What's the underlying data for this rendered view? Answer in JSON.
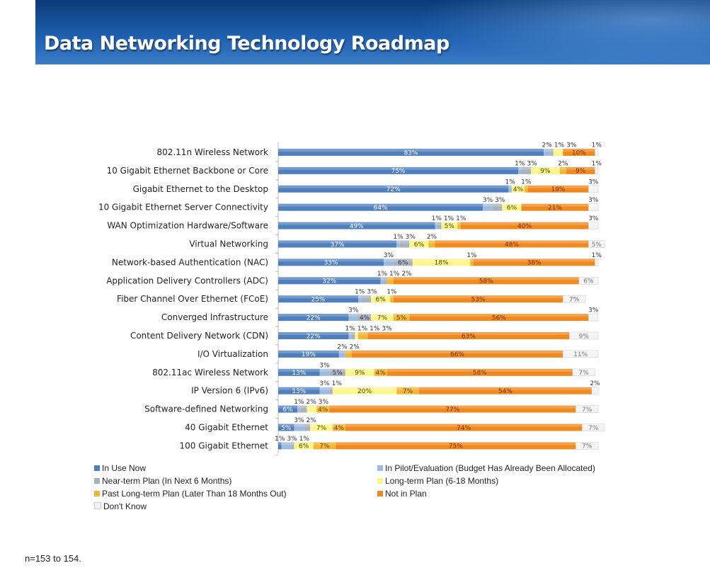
{
  "header": {
    "title": "Data Networking Technology Roadmap"
  },
  "chart_data": {
    "type": "bar",
    "orientation": "horizontal",
    "stacked": true,
    "percent": true,
    "xlim": [
      0,
      100
    ],
    "grid": false,
    "legend_position": "bottom",
    "categories": [
      "802.11n Wireless Network",
      "10 Gigabit Ethernet Backbone or Core",
      "Gigabit Ethernet to the Desktop",
      "10 Gigabit Ethernet Server Connectivity",
      "WAN Optimization Hardware/Software",
      "Virtual Networking",
      "Network-based Authentication (NAC)",
      "Application Delivery Controllers (ADC)",
      "Fiber Channel Over Ethernet (FCoE)",
      "Converged Infrastructure",
      "Content Delivery Network (CDN)",
      "I/O Virtualization",
      "802.11ac Wireless Network",
      "IP Version 6 (IPv6)",
      "Software-defined Networking",
      "40 Gigabit Ethernet",
      "100 Gigabit Ethernet"
    ],
    "series": [
      {
        "name": "In Use Now",
        "color": "#4f7fbd",
        "values": [
          83,
          75,
          72,
          64,
          49,
          37,
          33,
          32,
          25,
          22,
          22,
          19,
          13,
          13,
          6,
          5,
          1
        ]
      },
      {
        "name": "In Pilot/Evaluation (Budget Has Already Been Allocated)",
        "color": "#9dbbe0",
        "values": [
          2,
          1,
          1,
          3,
          1,
          1,
          3,
          1,
          1,
          3,
          1,
          2,
          3,
          3,
          1,
          3,
          3
        ]
      },
      {
        "name": "Near-term Plan (In Next 6 Months)",
        "color": "#a9b1bd",
        "values": [
          1,
          3,
          0,
          3,
          1,
          3,
          6,
          1,
          3,
          4,
          1,
          0,
          5,
          1,
          2,
          2,
          1
        ]
      },
      {
        "name": "Long-term Plan (6-18 Months)",
        "color": "#fbf58a",
        "values": [
          3,
          9,
          4,
          6,
          5,
          6,
          18,
          0,
          6,
          7,
          1,
          0,
          9,
          20,
          3,
          7,
          6
        ]
      },
      {
        "name": "Past Long-term Plan (Later Than 18 Months Out)",
        "color": "#f2b632",
        "values": [
          0,
          2,
          1,
          0,
          1,
          2,
          1,
          2,
          1,
          5,
          3,
          2,
          4,
          7,
          4,
          4,
          7
        ]
      },
      {
        "name": "Not in Plan",
        "color": "#f08a1e",
        "values": [
          10,
          9,
          19,
          21,
          40,
          48,
          38,
          58,
          53,
          56,
          63,
          66,
          58,
          54,
          77,
          74,
          75
        ]
      },
      {
        "name": "Don't Know",
        "color": "#f4f4f4",
        "values": [
          1,
          1,
          3,
          3,
          3,
          5,
          1,
          6,
          7,
          3,
          9,
          11,
          7,
          2,
          7,
          7,
          7
        ]
      }
    ]
  },
  "footnote": "n=153 to 154."
}
